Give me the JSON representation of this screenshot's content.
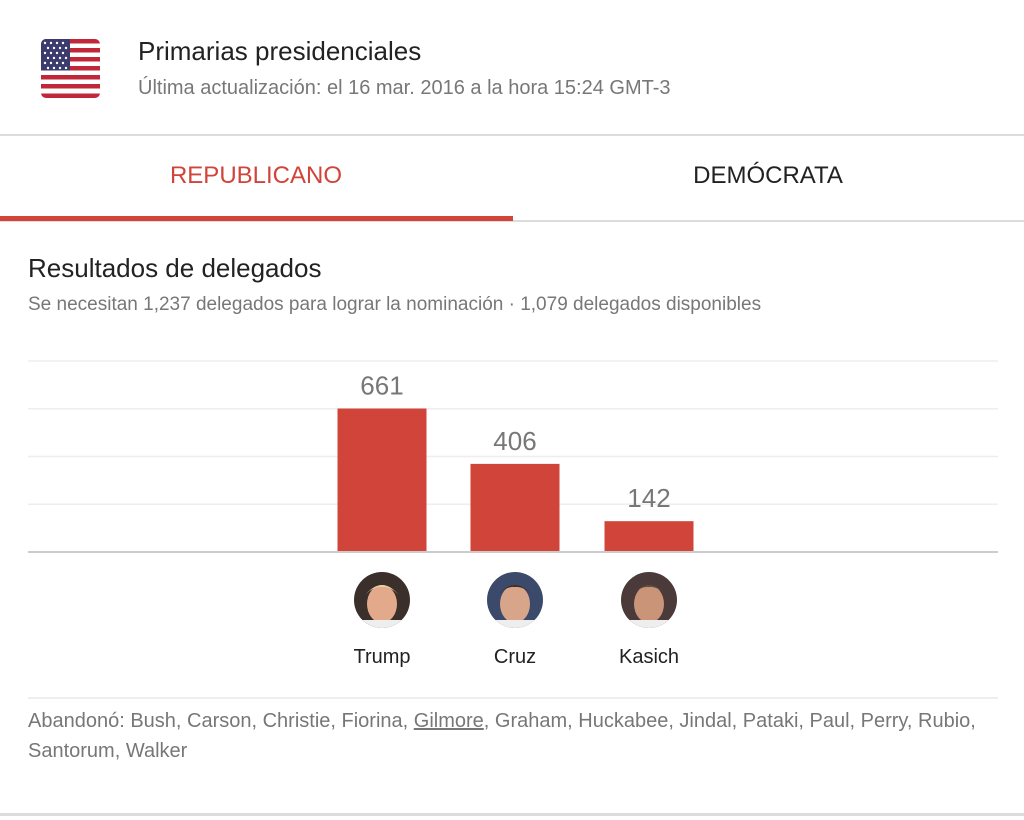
{
  "header": {
    "flag_icon": "us-flag-icon",
    "title": "Primarias presidenciales",
    "updated": "Última actualización: el 16 mar. 2016 a la hora 15:24 GMT-3"
  },
  "tabs": [
    {
      "label": "REPUBLICANO",
      "active": true
    },
    {
      "label": "DEMÓCRATA",
      "active": false
    }
  ],
  "colors": {
    "accent": "#d0443a",
    "bar": "#d0443a",
    "grid": "#eeeeee",
    "baseline": "#cccccc"
  },
  "section": {
    "title": "Resultados de delegados",
    "subtitle": "Se necesitan 1,237 delegados para lograr la nominación · 1,079 delegados disponibles"
  },
  "chart_data": {
    "type": "bar",
    "title": "Resultados de delegados",
    "xlabel": "",
    "ylabel": "",
    "categories": [
      "Trump",
      "Cruz",
      "Kasich"
    ],
    "values": [
      661,
      406,
      142
    ],
    "value_labels": [
      "661",
      "406",
      "142"
    ],
    "ylim": [
      0,
      880
    ],
    "grid": true,
    "legend": "none"
  },
  "candidates": [
    {
      "name": "Trump",
      "avatar": "trump-avatar"
    },
    {
      "name": "Cruz",
      "avatar": "cruz-avatar"
    },
    {
      "name": "Kasich",
      "avatar": "kasich-avatar"
    }
  ],
  "dropped_out": {
    "prefix": "Abandonó: ",
    "before_link": "Bush, Carson, Christie, Fiorina, ",
    "link": "Gilmore",
    "after_link": ", Graham, Huckabee, Jindal, Pataki, Paul, Perry, Rubio, Santorum, Walker"
  }
}
